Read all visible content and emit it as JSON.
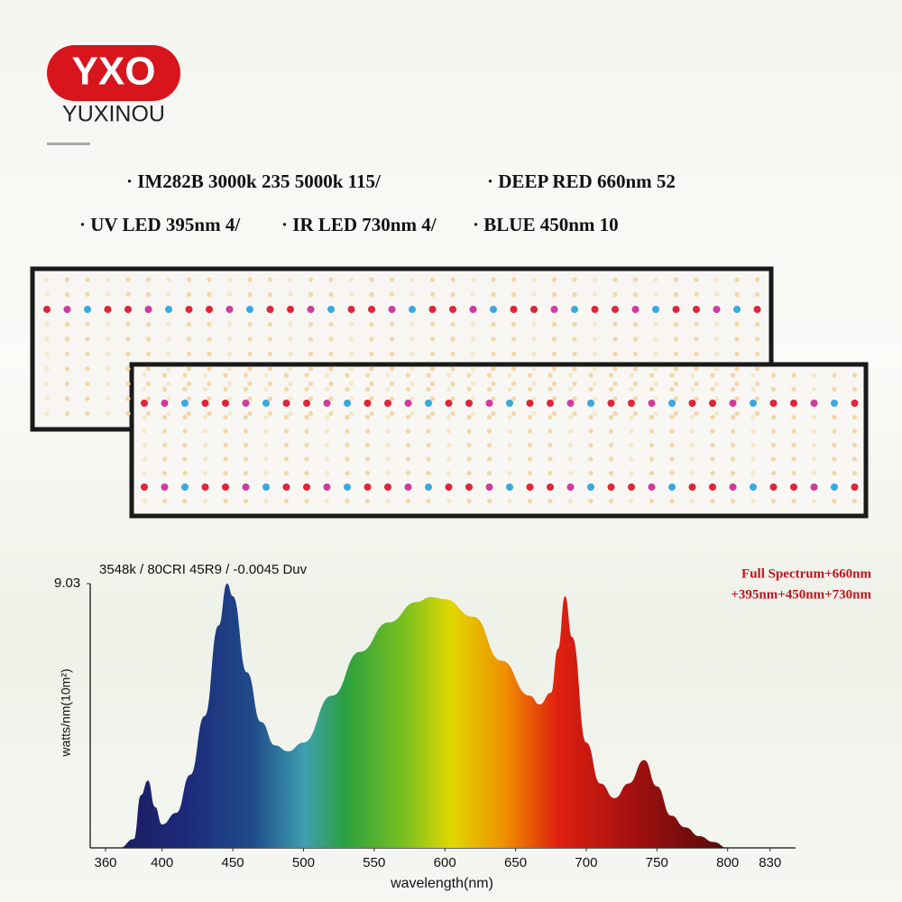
{
  "header": {
    "logo": "YXO",
    "brand": "YUXINOU"
  },
  "features": {
    "line1": [
      "IM282B 3000k 235  5000k 115/",
      "DEEP RED 660nm 52"
    ],
    "line2": [
      "UV LED 395nm 4/",
      "IR LED 730nm 4/",
      "BLUE 450nm 10"
    ]
  },
  "chart_data": {
    "type": "area",
    "subtitle": "3548k / 80CRI 45R9 / -0.0045 Duv",
    "annotation": [
      "Full Spectrum+660nm",
      "+395nm+450nm+730nm"
    ],
    "x_label": "wavelength(nm)",
    "y_label": "watts/nm(10m²)",
    "x": [
      370,
      380,
      385,
      390,
      395,
      400,
      410,
      420,
      430,
      440,
      446,
      450,
      460,
      470,
      480,
      489,
      500,
      520,
      540,
      560,
      580,
      590,
      600,
      620,
      640,
      660,
      667,
      675,
      680,
      685,
      690,
      700,
      710,
      720,
      730,
      741,
      750,
      760,
      770,
      780,
      790,
      800
    ],
    "values": [
      0,
      0.3,
      1.8,
      2.3,
      1.4,
      0.8,
      1.2,
      2.5,
      4.5,
      7.6,
      9.03,
      8.6,
      6.0,
      4.3,
      3.5,
      3.3,
      3.6,
      5.2,
      6.7,
      7.7,
      8.4,
      8.57,
      8.5,
      7.9,
      6.4,
      5.2,
      4.9,
      5.3,
      6.8,
      8.6,
      7.2,
      3.6,
      2.2,
      1.7,
      2.2,
      3.0,
      2.1,
      1.1,
      0.7,
      0.4,
      0.2,
      0
    ],
    "xlim": [
      360,
      830
    ],
    "ylim": [
      0,
      9.03
    ],
    "xticks": [
      360,
      400,
      450,
      500,
      550,
      600,
      650,
      700,
      750,
      800,
      830
    ],
    "yticks": [
      9.03
    ]
  }
}
